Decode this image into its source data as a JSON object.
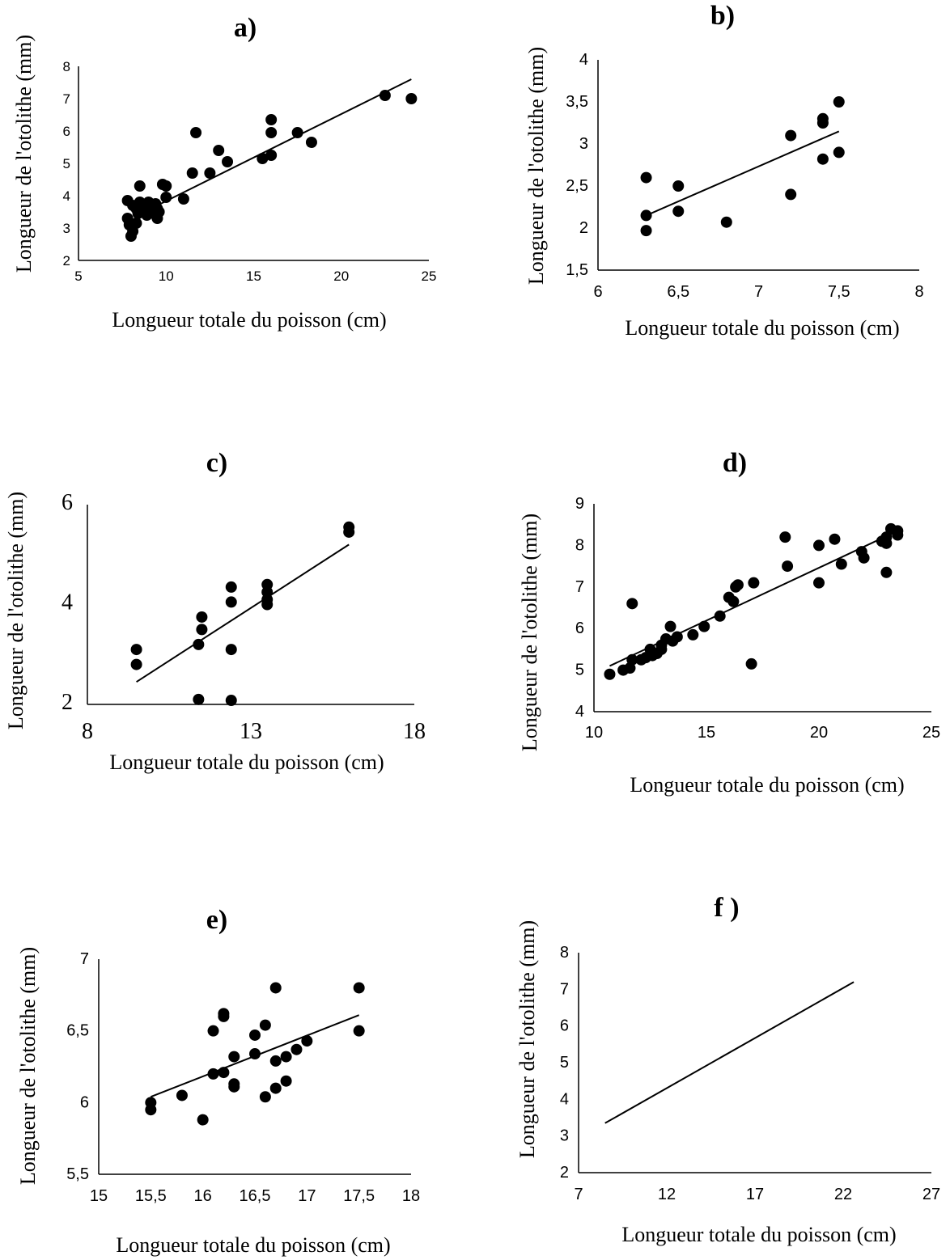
{
  "chart_data": [
    {
      "panel": "a)",
      "type": "scatter",
      "title": "a)",
      "xlabel": "Longueur totale du poisson (cm)",
      "ylabel": "Longueur de l'otolithe (mm)",
      "xlim": [
        5,
        25
      ],
      "ylim": [
        2,
        8
      ],
      "xticks": [
        "5",
        "10",
        "15",
        "20",
        "25"
      ],
      "yticks": [
        "2",
        "3",
        "4",
        "5",
        "6",
        "7",
        "8"
      ],
      "points": [
        [
          7.8,
          3.85
        ],
        [
          7.8,
          3.3
        ],
        [
          7.9,
          3.1
        ],
        [
          8.0,
          2.75
        ],
        [
          8.1,
          2.9
        ],
        [
          8.1,
          3.7
        ],
        [
          8.3,
          3.6
        ],
        [
          8.3,
          3.15
        ],
        [
          8.4,
          3.45
        ],
        [
          8.5,
          3.8
        ],
        [
          8.5,
          4.3
        ],
        [
          8.6,
          3.6
        ],
        [
          8.7,
          3.5
        ],
        [
          8.8,
          3.65
        ],
        [
          8.9,
          3.4
        ],
        [
          9.0,
          3.8
        ],
        [
          9.0,
          3.55
        ],
        [
          9.1,
          3.7
        ],
        [
          9.2,
          3.5
        ],
        [
          9.3,
          3.45
        ],
        [
          9.4,
          3.75
        ],
        [
          9.5,
          3.6
        ],
        [
          9.5,
          3.3
        ],
        [
          9.6,
          3.5
        ],
        [
          9.8,
          4.35
        ],
        [
          10.0,
          4.3
        ],
        [
          10.0,
          3.95
        ],
        [
          11.0,
          3.9
        ],
        [
          11.5,
          4.7
        ],
        [
          11.7,
          5.95
        ],
        [
          12.5,
          4.7
        ],
        [
          13.0,
          5.4
        ],
        [
          13.5,
          5.05
        ],
        [
          15.5,
          5.15
        ],
        [
          16.0,
          5.25
        ],
        [
          16.0,
          5.95
        ],
        [
          16.0,
          6.35
        ],
        [
          17.5,
          5.95
        ],
        [
          18.3,
          5.65
        ],
        [
          22.5,
          7.1
        ],
        [
          24.0,
          7.0
        ]
      ],
      "trendline": [
        [
          9.5,
          3.7
        ],
        [
          24.0,
          7.6
        ]
      ]
    },
    {
      "panel": "b)",
      "type": "scatter",
      "title": "b)",
      "xlabel": "Longueur totale du poisson (cm)",
      "ylabel": "Longueur de l'otolithe (mm)",
      "xlim": [
        6,
        8
      ],
      "ylim": [
        1.5,
        4
      ],
      "xticks": [
        "6",
        "6,5",
        "7",
        "7,5",
        "8"
      ],
      "yticks": [
        "1,5",
        "2",
        "2,5",
        "3",
        "3,5",
        "4"
      ],
      "points": [
        [
          6.3,
          2.6
        ],
        [
          6.3,
          2.15
        ],
        [
          6.3,
          1.97
        ],
        [
          6.5,
          2.5
        ],
        [
          6.5,
          2.2
        ],
        [
          6.8,
          2.07
        ],
        [
          7.2,
          3.1
        ],
        [
          7.2,
          2.4
        ],
        [
          7.4,
          3.3
        ],
        [
          7.4,
          3.25
        ],
        [
          7.4,
          2.82
        ],
        [
          7.5,
          3.5
        ],
        [
          7.5,
          2.9
        ]
      ],
      "trendline": [
        [
          6.3,
          2.15
        ],
        [
          7.5,
          3.15
        ]
      ]
    },
    {
      "panel": "c)",
      "type": "scatter",
      "title": "c)",
      "xlabel": "Longueur totale du poisson (cm)",
      "ylabel": "Longueur de l'otolithe (mm)",
      "xlim": [
        8,
        18
      ],
      "ylim": [
        2,
        6
      ],
      "xticks": [
        "8",
        "13",
        "18"
      ],
      "yticks": [
        "2",
        "4",
        "6"
      ],
      "points": [
        [
          9.5,
          3.1
        ],
        [
          9.5,
          2.8
        ],
        [
          11.4,
          3.2
        ],
        [
          11.4,
          2.1
        ],
        [
          11.5,
          3.75
        ],
        [
          11.5,
          3.5
        ],
        [
          12.4,
          4.35
        ],
        [
          12.4,
          4.05
        ],
        [
          12.4,
          3.1
        ],
        [
          12.4,
          2.08
        ],
        [
          13.5,
          4.4
        ],
        [
          13.5,
          4.25
        ],
        [
          13.5,
          4.1
        ],
        [
          13.5,
          4.0
        ],
        [
          16.0,
          5.55
        ],
        [
          16.0,
          5.45
        ]
      ],
      "trendline": [
        [
          9.5,
          2.45
        ],
        [
          16.0,
          5.2
        ]
      ]
    },
    {
      "panel": "d)",
      "type": "scatter",
      "title": "d)",
      "xlabel": "Longueur totale du poisson (cm)",
      "ylabel": "Longueur de l'otolithe (mm)",
      "xlim": [
        10,
        25
      ],
      "ylim": [
        4,
        9
      ],
      "xticks": [
        "10",
        "15",
        "20",
        "25"
      ],
      "yticks": [
        "4",
        "5",
        "6",
        "7",
        "8",
        "9"
      ],
      "points": [
        [
          10.7,
          4.9
        ],
        [
          11.3,
          5.0
        ],
        [
          11.6,
          5.05
        ],
        [
          11.7,
          6.6
        ],
        [
          11.7,
          5.25
        ],
        [
          12.1,
          5.25
        ],
        [
          12.3,
          5.3
        ],
        [
          12.5,
          5.5
        ],
        [
          12.6,
          5.35
        ],
        [
          12.8,
          5.4
        ],
        [
          13.0,
          5.5
        ],
        [
          13.0,
          5.6
        ],
        [
          13.2,
          5.75
        ],
        [
          13.4,
          6.05
        ],
        [
          13.5,
          5.7
        ],
        [
          13.7,
          5.8
        ],
        [
          14.4,
          5.85
        ],
        [
          14.9,
          6.05
        ],
        [
          15.6,
          6.3
        ],
        [
          16.0,
          6.75
        ],
        [
          16.2,
          6.65
        ],
        [
          16.3,
          7.0
        ],
        [
          16.4,
          7.05
        ],
        [
          17.0,
          5.15
        ],
        [
          17.1,
          7.1
        ],
        [
          18.5,
          8.2
        ],
        [
          18.6,
          7.5
        ],
        [
          20.0,
          8.0
        ],
        [
          20.0,
          7.1
        ],
        [
          20.7,
          8.15
        ],
        [
          21.0,
          7.55
        ],
        [
          21.9,
          7.85
        ],
        [
          22.0,
          7.7
        ],
        [
          22.8,
          8.1
        ],
        [
          23.0,
          8.2
        ],
        [
          23.0,
          8.05
        ],
        [
          23.0,
          7.35
        ],
        [
          23.2,
          8.4
        ],
        [
          23.5,
          8.35
        ],
        [
          23.5,
          8.25
        ]
      ],
      "trendline": [
        [
          10.7,
          5.1
        ],
        [
          23.5,
          8.35
        ]
      ]
    },
    {
      "panel": "e)",
      "type": "scatter",
      "title": "e)",
      "xlabel": "Longueur totale du poisson (cm)",
      "ylabel": "Longueur de l'otolithe (mm)",
      "xlim": [
        15,
        18
      ],
      "ylim": [
        5.5,
        7
      ],
      "xticks": [
        "15",
        "15,5",
        "16",
        "16,5",
        "17",
        "17,5",
        "18"
      ],
      "yticks": [
        "5,5",
        "6",
        "6,5",
        "7"
      ],
      "points": [
        [
          15.5,
          6.0
        ],
        [
          15.5,
          5.95
        ],
        [
          15.8,
          6.05
        ],
        [
          16.0,
          5.88
        ],
        [
          16.1,
          6.5
        ],
        [
          16.1,
          6.2
        ],
        [
          16.2,
          6.62
        ],
        [
          16.2,
          6.6
        ],
        [
          16.2,
          6.21
        ],
        [
          16.3,
          6.32
        ],
        [
          16.3,
          6.13
        ],
        [
          16.3,
          6.11
        ],
        [
          16.5,
          6.47
        ],
        [
          16.5,
          6.34
        ],
        [
          16.6,
          6.54
        ],
        [
          16.6,
          6.04
        ],
        [
          16.7,
          6.8
        ],
        [
          16.7,
          6.29
        ],
        [
          16.7,
          6.1
        ],
        [
          16.8,
          6.32
        ],
        [
          16.8,
          6.15
        ],
        [
          16.9,
          6.37
        ],
        [
          17.0,
          6.43
        ],
        [
          17.5,
          6.8
        ],
        [
          17.5,
          6.5
        ]
      ],
      "trendline": [
        [
          15.5,
          6.04
        ],
        [
          17.5,
          6.61
        ]
      ]
    },
    {
      "panel": "f )",
      "type": "line",
      "title": "f )",
      "xlabel": "Longueur totale du poisson (cm)",
      "ylabel": "Longueur de l'otolithe (mm)",
      "xlim": [
        7,
        27
      ],
      "ylim": [
        2,
        8
      ],
      "xticks": [
        "7",
        "12",
        "17",
        "22",
        "27"
      ],
      "yticks": [
        "2",
        "3",
        "4",
        "5",
        "6",
        "7",
        "8"
      ],
      "points": [],
      "trendline": [
        [
          8.5,
          3.35
        ],
        [
          22.6,
          7.2
        ]
      ]
    }
  ]
}
